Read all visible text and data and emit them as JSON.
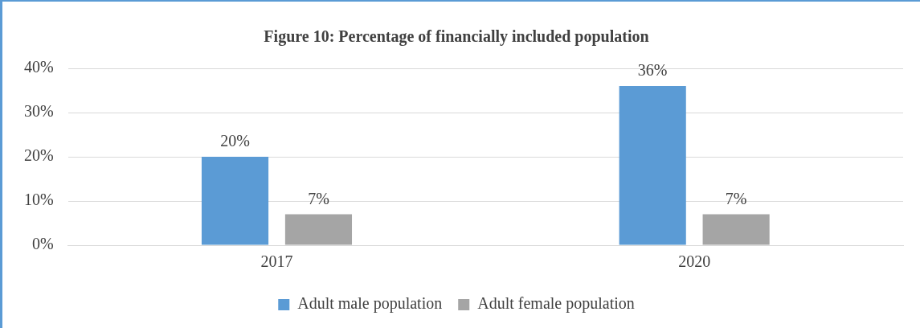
{
  "chart_data": {
    "type": "bar",
    "title": "Figure 10: Percentage of financially included population",
    "categories": [
      "2017",
      "2020"
    ],
    "series": [
      {
        "name": "Adult male population",
        "color": "#5b9bd5",
        "values": [
          20,
          36
        ],
        "value_labels": [
          "20%",
          "36%"
        ]
      },
      {
        "name": "Adult female population",
        "color": "#a5a5a5",
        "values": [
          7,
          7
        ],
        "value_labels": [
          "7%",
          "7%"
        ]
      }
    ],
    "ylim": [
      0,
      40
    ],
    "yticks": [
      {
        "value": 0,
        "label": "0%"
      },
      {
        "value": 10,
        "label": "10%"
      },
      {
        "value": 20,
        "label": "20%"
      },
      {
        "value": 30,
        "label": "30%"
      },
      {
        "value": 40,
        "label": "40%"
      }
    ],
    "grid": "y",
    "legend": "bottom"
  }
}
